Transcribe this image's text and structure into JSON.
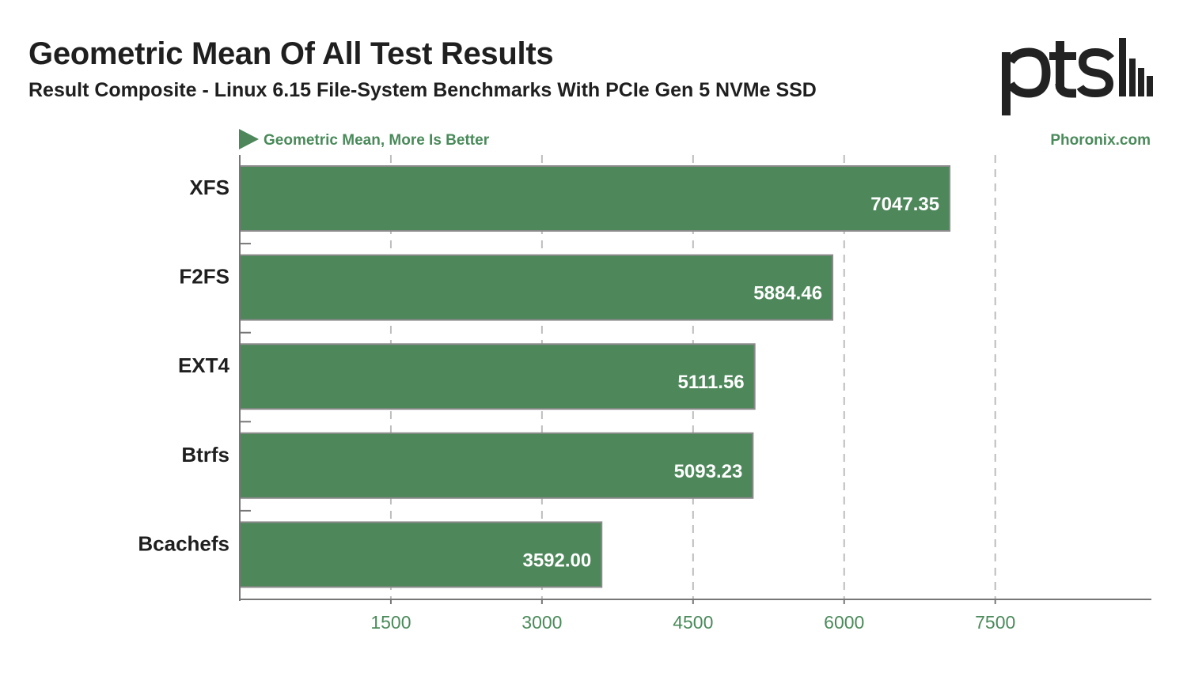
{
  "header": {
    "title": "Geometric Mean Of All Test Results",
    "subtitle": "Result Composite - Linux 6.15 File-System Benchmarks With PCIe Gen 5 NVMe SSD",
    "logo_text": "ptsl"
  },
  "chart_data": {
    "type": "bar",
    "orientation": "horizontal",
    "title": "Geometric Mean Of All Test Results",
    "subtitle": "Result Composite - Linux 6.15 File-System Benchmarks With PCIe Gen 5 NVMe SSD",
    "metric_label": "Geometric Mean, More Is Better",
    "source_label": "Phoronix.com",
    "categories": [
      "XFS",
      "F2FS",
      "EXT4",
      "Btrfs",
      "Bcachefs"
    ],
    "values": [
      7047.35,
      5884.46,
      5111.56,
      5093.23,
      3592.0
    ],
    "value_labels": [
      "7047.35",
      "5884.46",
      "5111.56",
      "5093.23",
      "3592.00"
    ],
    "xticks": [
      1500,
      3000,
      4500,
      6000,
      7500
    ],
    "xlim": [
      0,
      9050
    ],
    "grid": true,
    "colors": {
      "bar": "#4d875a",
      "bar_border": "#8a8a8a",
      "accent": "#4a8a5a",
      "text": "#1f1f1f",
      "grid": "#bdbdbd",
      "axis": "#777777"
    }
  }
}
